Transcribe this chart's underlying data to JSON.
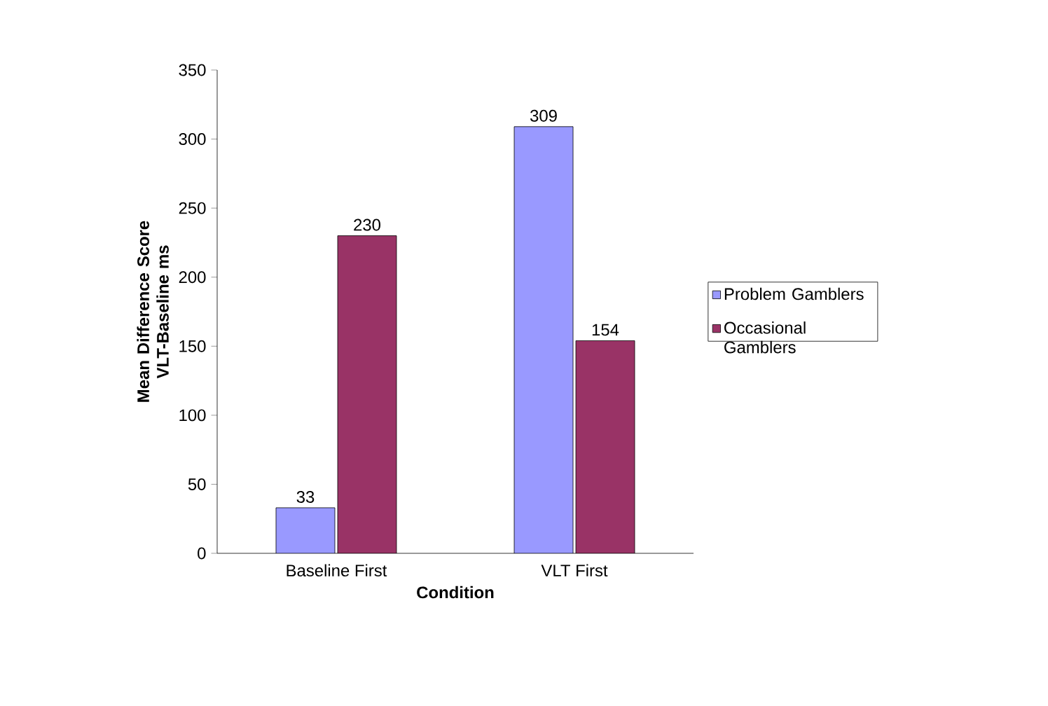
{
  "chart_data": {
    "type": "bar",
    "xlabel": "Condition",
    "ylabel": "Mean Difference Score VLT-Baseline ms",
    "categories": [
      "Baseline First",
      "VLT First"
    ],
    "series": [
      {
        "name": "Problem Gamblers",
        "color": "#9999ff",
        "values": [
          33,
          309
        ]
      },
      {
        "name": "Occasional Gamblers",
        "color": "#993366",
        "values": [
          230,
          154
        ]
      }
    ],
    "ylim": [
      0,
      350
    ],
    "yticks": [
      0,
      50,
      100,
      150,
      200,
      250,
      300,
      350
    ],
    "data_labels": true,
    "legend": "right",
    "grid": false
  }
}
